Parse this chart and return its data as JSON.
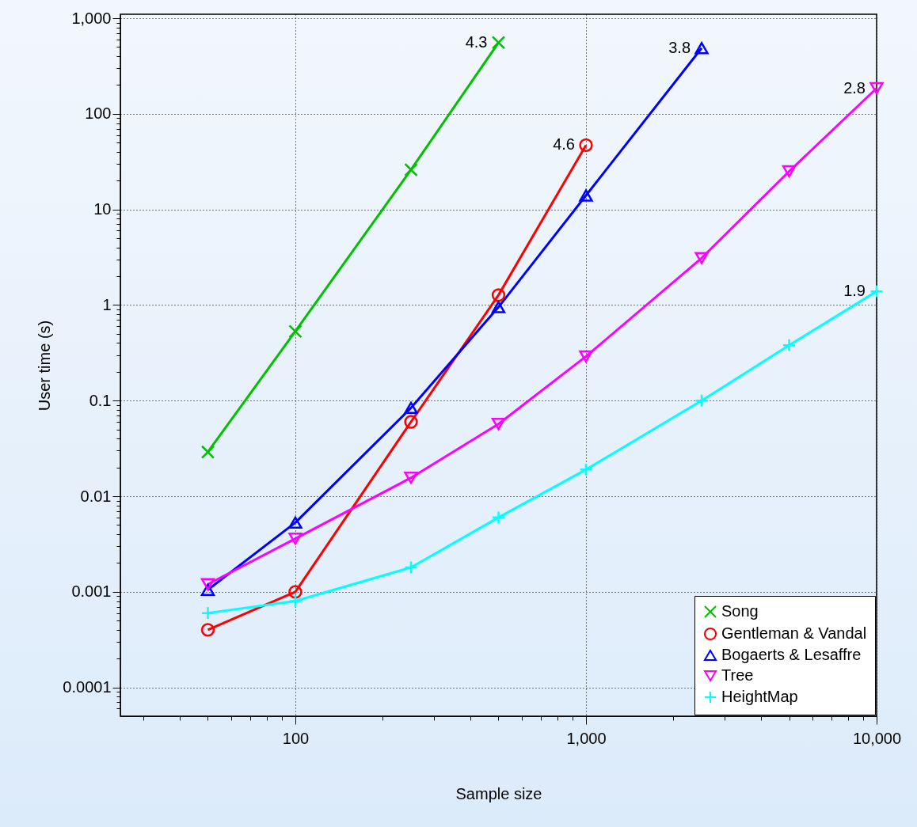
{
  "chart_data": {
    "type": "line",
    "xlabel": "Sample size",
    "ylabel": "User time (s)",
    "log": "xy",
    "grid": true,
    "legend": "bottom right",
    "line_style": "solid",
    "xlim": [
      25,
      10000
    ],
    "ylim": [
      5e-05,
      1100
    ],
    "xticks": [
      {
        "value": 30,
        "label": null
      },
      {
        "value": 40,
        "label": null
      },
      {
        "value": 50,
        "label": null
      },
      {
        "value": 60,
        "label": null
      },
      {
        "value": 70,
        "label": null
      },
      {
        "value": 80,
        "label": null
      },
      {
        "value": 90,
        "label": null
      },
      100,
      {
        "value": 200,
        "label": null
      },
      {
        "value": 300,
        "label": null
      },
      {
        "value": 400,
        "label": null
      },
      {
        "value": 500,
        "label": null
      },
      {
        "value": 600,
        "label": null
      },
      {
        "value": 700,
        "label": null
      },
      {
        "value": 800,
        "label": null
      },
      {
        "value": 900,
        "label": null
      },
      {
        "value": 1000,
        "label": "1,000"
      },
      {
        "value": 2000,
        "label": null
      },
      {
        "value": 3000,
        "label": null
      },
      {
        "value": 4000,
        "label": null
      },
      {
        "value": 5000,
        "label": null
      },
      {
        "value": 6000,
        "label": null
      },
      {
        "value": 7000,
        "label": null
      },
      {
        "value": 8000,
        "label": null
      },
      {
        "value": 9000,
        "label": null
      },
      {
        "value": 10000,
        "label": "10,000"
      }
    ],
    "yticks": [
      {
        "value": 6e-05,
        "label": null
      },
      {
        "value": 7e-05,
        "label": null
      },
      {
        "value": 8e-05,
        "label": null
      },
      {
        "value": 9e-05,
        "label": null
      },
      0.0001,
      {
        "value": 0.0002,
        "label": null
      },
      {
        "value": 0.0003,
        "label": null
      },
      {
        "value": 0.0004,
        "label": null
      },
      {
        "value": 0.0005,
        "label": null
      },
      {
        "value": 0.0006,
        "label": null
      },
      {
        "value": 0.0007,
        "label": null
      },
      {
        "value": 0.0008,
        "label": null
      },
      {
        "value": 0.0009,
        "label": null
      },
      0.001,
      {
        "value": 0.002,
        "label": null
      },
      {
        "value": 0.003,
        "label": null
      },
      {
        "value": 0.004,
        "label": null
      },
      {
        "value": 0.005,
        "label": null
      },
      {
        "value": 0.006,
        "label": null
      },
      {
        "value": 0.007,
        "label": null
      },
      {
        "value": 0.008,
        "label": null
      },
      {
        "value": 0.009,
        "label": null
      },
      0.01,
      {
        "value": 0.02,
        "label": null
      },
      {
        "value": 0.03,
        "label": null
      },
      {
        "value": 0.04,
        "label": null
      },
      {
        "value": 0.05,
        "label": null
      },
      {
        "value": 0.06,
        "label": null
      },
      {
        "value": 0.07,
        "label": null
      },
      {
        "value": 0.08,
        "label": null
      },
      {
        "value": 0.09,
        "label": null
      },
      0.1,
      {
        "value": 0.2,
        "label": null
      },
      {
        "value": 0.3,
        "label": null
      },
      {
        "value": 0.4,
        "label": null
      },
      {
        "value": 0.5,
        "label": null
      },
      {
        "value": 0.6,
        "label": null
      },
      {
        "value": 0.7,
        "label": null
      },
      {
        "value": 0.8,
        "label": null
      },
      {
        "value": 0.9,
        "label": null
      },
      1,
      {
        "value": 2,
        "label": null
      },
      {
        "value": 3,
        "label": null
      },
      {
        "value": 4,
        "label": null
      },
      {
        "value": 5,
        "label": null
      },
      {
        "value": 6,
        "label": null
      },
      {
        "value": 7,
        "label": null
      },
      {
        "value": 8,
        "label": null
      },
      {
        "value": 9,
        "label": null
      },
      10,
      {
        "value": 20,
        "label": null
      },
      {
        "value": 30,
        "label": null
      },
      {
        "value": 40,
        "label": null
      },
      {
        "value": 50,
        "label": null
      },
      {
        "value": 60,
        "label": null
      },
      {
        "value": 70,
        "label": null
      },
      {
        "value": 80,
        "label": null
      },
      {
        "value": 90,
        "label": null
      },
      100,
      {
        "value": 200,
        "label": null
      },
      {
        "value": 300,
        "label": null
      },
      {
        "value": 400,
        "label": null
      },
      {
        "value": 500,
        "label": null
      },
      {
        "value": 600,
        "label": null
      },
      {
        "value": 700,
        "label": null
      },
      {
        "value": 800,
        "label": null
      },
      {
        "value": 900,
        "label": null
      },
      {
        "value": 1000,
        "label": "1,000"
      }
    ],
    "series": [
      {
        "name": "Song",
        "color": "#00c000",
        "marker": "x",
        "x": [
          50,
          100,
          250,
          500
        ],
        "values": [
          0.029,
          0.53,
          26,
          556
        ]
      },
      {
        "name": "Gentleman & Vandal",
        "color": "#ff0000",
        "marker": "circle",
        "x": [
          50,
          100,
          250,
          500,
          1000
        ],
        "values": [
          0.0004,
          0.001,
          0.06,
          1.27,
          47
        ]
      },
      {
        "name": "Bogaerts & Lesaffre",
        "color": "#0000ff",
        "marker": "triangle",
        "x": [
          50,
          100,
          250,
          500,
          1000,
          2500
        ],
        "values": [
          0.00105,
          0.0053,
          0.084,
          0.95,
          14,
          487
        ]
      },
      {
        "name": "Tree",
        "color": "#ff00ff",
        "marker": "triangle-down",
        "x": [
          50,
          100,
          250,
          500,
          1000,
          2500,
          5000,
          10000
        ],
        "values": [
          0.0012,
          0.0036,
          0.0156,
          0.057,
          0.29,
          3.1,
          25,
          185
        ]
      },
      {
        "name": "HeightMap",
        "color": "#00ffff",
        "marker": "cross",
        "x": [
          50,
          100,
          250,
          500,
          1000,
          2500,
          5000,
          10000
        ],
        "values": [
          0.0006,
          0.0008,
          0.0018,
          0.006,
          0.019,
          0.1,
          0.38,
          1.39
        ]
      }
    ],
    "annotations": [
      {
        "text": "4.3",
        "x": 500,
        "y": 556
      },
      {
        "text": "4.6",
        "x": 1000,
        "y": 47
      },
      {
        "text": "3.8",
        "x": 2500,
        "y": 487
      },
      {
        "text": "2.8",
        "x": 10000,
        "y": 185
      },
      {
        "text": "1.9",
        "x": 10000,
        "y": 1.39
      }
    ]
  }
}
